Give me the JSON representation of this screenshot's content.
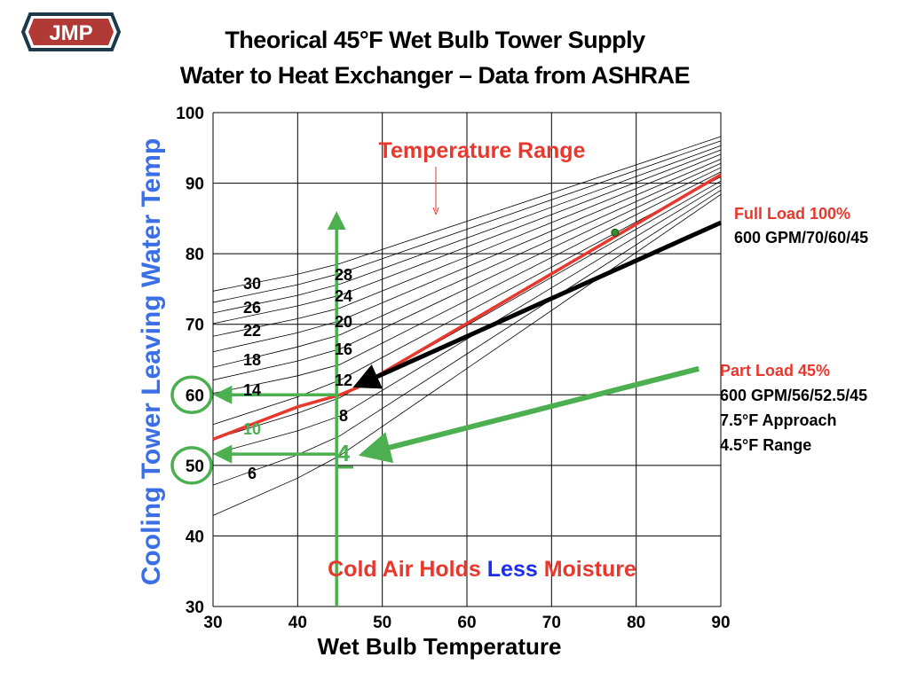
{
  "logo": {
    "text": "JMP",
    "colors": {
      "fill": "#b23a36",
      "border": "#1d3a4a"
    }
  },
  "title": {
    "line1": "Theorical 45°F Wet Bulb Tower Supply",
    "line2": "Water to Heat Exchanger – Data from ASHRAE"
  },
  "chart_data": {
    "type": "line",
    "xlabel": "Wet Bulb Temperature",
    "ylabel": "Cooling Tower Leaving Water Temp",
    "xlim": [
      30,
      90
    ],
    "ylim": [
      30,
      100
    ],
    "xticks": [
      "30",
      "40",
      "50",
      "60",
      "70",
      "80",
      "90"
    ],
    "yticks": [
      "30",
      "40",
      "50",
      "60",
      "70",
      "80",
      "90",
      "100"
    ],
    "grid": true,
    "series": [
      {
        "range": 4,
        "points": [
          [
            30,
            42.9
          ],
          [
            40,
            48.2
          ],
          [
            45,
            51.4
          ],
          [
            90,
            88.4
          ]
        ]
      },
      {
        "range": 6,
        "points": [
          [
            30,
            47.2
          ],
          [
            40,
            51.5
          ],
          [
            45,
            54.2
          ],
          [
            90,
            89.0
          ]
        ]
      },
      {
        "range": 8,
        "points": [
          [
            30,
            51.6
          ],
          [
            40,
            54.9
          ],
          [
            45,
            57.0
          ],
          [
            90,
            89.7
          ]
        ]
      },
      {
        "range": 10,
        "points": [
          [
            30,
            53.7
          ],
          [
            40,
            57.4
          ],
          [
            45,
            59.6
          ],
          [
            90,
            90.3
          ]
        ]
      },
      {
        "range": 12,
        "points": [
          [
            30,
            55.8
          ],
          [
            40,
            59.7
          ],
          [
            45,
            62.1
          ],
          [
            90,
            90.9
          ]
        ]
      },
      {
        "range": 14,
        "points": [
          [
            30,
            60.2
          ],
          [
            40,
            62.7
          ],
          [
            45,
            64.3
          ],
          [
            90,
            91.6
          ]
        ]
      },
      {
        "range": 16,
        "points": [
          [
            30,
            62.1
          ],
          [
            40,
            64.8
          ],
          [
            45,
            66.5
          ],
          [
            90,
            92.2
          ]
        ]
      },
      {
        "range": 18,
        "points": [
          [
            30,
            63.9
          ],
          [
            40,
            66.8
          ],
          [
            45,
            68.5
          ],
          [
            90,
            92.8
          ]
        ]
      },
      {
        "range": 20,
        "points": [
          [
            30,
            66.1
          ],
          [
            40,
            68.8
          ],
          [
            45,
            70.5
          ],
          [
            90,
            93.4
          ]
        ]
      },
      {
        "range": 22,
        "points": [
          [
            30,
            68.3
          ],
          [
            40,
            70.8
          ],
          [
            45,
            72.3
          ],
          [
            90,
            94.1
          ]
        ]
      },
      {
        "range": 24,
        "points": [
          [
            30,
            70.1
          ],
          [
            40,
            72.6
          ],
          [
            45,
            74.1
          ],
          [
            90,
            94.7
          ]
        ]
      },
      {
        "range": 26,
        "points": [
          [
            30,
            71.6
          ],
          [
            40,
            74.1
          ],
          [
            45,
            75.7
          ],
          [
            90,
            95.3
          ]
        ]
      },
      {
        "range": 28,
        "points": [
          [
            30,
            73.1
          ],
          [
            40,
            75.6
          ],
          [
            45,
            77.2
          ],
          [
            90,
            96.0
          ]
        ]
      },
      {
        "range": 30,
        "points": [
          [
            30,
            74.7
          ],
          [
            40,
            77.1
          ],
          [
            45,
            78.6
          ],
          [
            90,
            96.6
          ]
        ]
      }
    ],
    "highlight_line": {
      "color": "#e8372c",
      "points": [
        [
          30,
          53.7
        ],
        [
          40,
          58.3
        ],
        [
          45,
          60
        ],
        [
          47,
          61
        ],
        [
          90,
          91.2
        ]
      ]
    },
    "full_load_arrow": {
      "color": "#000000",
      "from": [
        90,
        84.4
      ],
      "to": [
        47,
        61.3
      ]
    },
    "part_load_arrow": {
      "color": "#4caf50",
      "from": [
        87.4,
        63.7
      ],
      "to": [
        47.8,
        51.6
      ]
    },
    "marker_point": {
      "x": 77.5,
      "y": 83,
      "color": "#3a8a2e"
    },
    "wet_bulb_line": {
      "x": 44.6,
      "from": 30,
      "to": 85.6,
      "color": "#4caf50"
    },
    "readouts": [
      {
        "from_x": 44.6,
        "y": 60,
        "tick": "60"
      },
      {
        "from_x": 44.6,
        "y": 51.6,
        "tick": "50"
      }
    ],
    "curve_labels_left": [
      "30",
      "26",
      "22",
      "18",
      "14",
      "10",
      "6"
    ],
    "curve_labels_mid": [
      "28",
      "24",
      "20",
      "16",
      "12",
      "8",
      "4"
    ],
    "annotations": {
      "temperature_range": "Temperature Range",
      "full_load_title": "Full Load 100%",
      "full_load_detail": "600 GPM/70/60/45",
      "part_load_title": "Part Load 45%",
      "part_load_detail": "600 GPM/56/52.5/45",
      "part_load_approach": "7.5°F Approach",
      "part_load_range": "4.5°F Range",
      "cold_air_1": "Cold Air Holds ",
      "cold_air_2": "Less",
      "cold_air_3": " Moisture"
    },
    "colors": {
      "red": "#e8372c",
      "green": "#4caf50",
      "blue": "#1a2cf0",
      "ylabel": "#3b6fe8"
    }
  }
}
